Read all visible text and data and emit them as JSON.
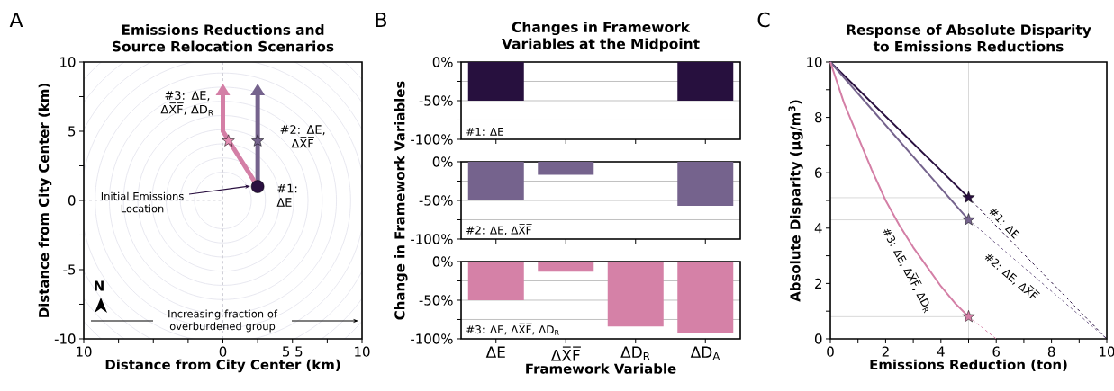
{
  "chart_data": [
    {
      "type": "scatter",
      "title": "Emissions Reductions and Source Relocation Scenarios",
      "xlabel": "Distance from City Center (km)",
      "ylabel": "Distance from City Center (km)",
      "xlim": [
        -10,
        10
      ],
      "ylim": [
        -10,
        10
      ],
      "xticks": [
        {
          "value": -10,
          "label": "10"
        },
        {
          "value": -7.5,
          "label": null
        },
        {
          "value": -5,
          "label": null
        },
        {
          "value": -2.5,
          "label": null
        },
        {
          "value": 0,
          "label": "0"
        },
        {
          "value": 2.5,
          "label": null
        },
        {
          "value": 5,
          "label": "5 5"
        },
        {
          "value": 7.5,
          "label": null
        },
        {
          "value": 10,
          "label": "10"
        }
      ],
      "yticks": [
        -10,
        {
          "value": -7.5,
          "label": null
        },
        -5,
        {
          "value": -2.5,
          "label": null
        },
        0,
        {
          "value": 2.5,
          "label": null
        },
        5,
        {
          "value": 7.5,
          "label": null
        },
        10
      ],
      "ref_lines": [
        {
          "axis": "x",
          "value": 0,
          "color": "#d0d0d8",
          "line_style": "dashed"
        },
        {
          "axis": "y",
          "value": 0,
          "color": "#d0d0d8",
          "line_style": "dashed"
        }
      ],
      "series": [
        {
          "type": "line",
          "color": "#75638d",
          "x": [
            2.5,
            2.5
          ],
          "values": [
            1.0,
            7.6
          ]
        },
        {
          "type": "line",
          "color": "#d47fa6",
          "x": [
            2.5,
            0,
            0
          ],
          "values": [
            1.0,
            5,
            7.6
          ]
        },
        {
          "type": "scatter",
          "marker": "star",
          "x": [
            0.4,
            2.5
          ],
          "values": [
            4.3,
            4.3
          ],
          "colors": [
            "#e58fb5",
            "#75638d"
          ]
        },
        {
          "type": "scatter",
          "marker": "circle",
          "x": [
            2.5
          ],
          "values": [
            1.0
          ],
          "color": "#2a1040"
        }
      ],
      "annotations": [
        {
          "text": "#1: ΔE",
          "x": 2.5,
          "y": 1.0
        },
        {
          "text": "#2: ΔE, ΔX̅F̅",
          "x": 2.5,
          "y": 4.3
        },
        "#3: ΔE, ΔX̅F̅, ΔD$_{R}$",
        "Initial Emissions Location",
        "Increasing fraction of overburdened group",
        "N",
        "A"
      ]
    },
    {
      "type": "bar",
      "title": "Changes in Framework Variables at the Midpoint",
      "categories": [
        null,
        null,
        null,
        null
      ],
      "values": [
        -50,
        0,
        0,
        -50
      ],
      "color": "#27103e",
      "ylim": [
        -100,
        0
      ],
      "yticks": [
        {
          "value": -100,
          "label": "-100%"
        },
        {
          "value": -75,
          "label": null
        },
        {
          "value": -50,
          "label": "-50%"
        },
        {
          "value": -25,
          "label": null
        },
        {
          "value": 0,
          "label": "0%"
        }
      ],
      "grid": "y",
      "tick_labels": "y",
      "annotations": [
        "#1: ΔE",
        "B"
      ]
    },
    {
      "type": "bar",
      "ylabel": "Change in Framework Variables",
      "categories": [
        null,
        null,
        null,
        null
      ],
      "values": [
        -50,
        -17,
        0,
        -57
      ],
      "color": "#75638d",
      "ylim": [
        -100,
        0
      ],
      "yticks": [
        {
          "value": -100,
          "label": "-100%"
        },
        {
          "value": -75,
          "label": null
        },
        {
          "value": -50,
          "label": "-50%"
        },
        {
          "value": -25,
          "label": null
        },
        {
          "value": 0,
          "label": "0%"
        }
      ],
      "grid": "y",
      "tick_labels": "y",
      "annotations": [
        "#2: ΔE, ΔX̅F̅"
      ]
    },
    {
      "type": "bar",
      "xlabel": "Framework Variable",
      "categories": [
        "ΔE",
        "ΔX̅F̅",
        "ΔD$_{R}$",
        "ΔD$_{A}$"
      ],
      "values": [
        -50,
        -13,
        -84,
        -93
      ],
      "color": "#d581a7",
      "ylim": [
        -100,
        0
      ],
      "yticks": [
        {
          "value": -100,
          "label": "-100%"
        },
        {
          "value": -75,
          "label": null
        },
        {
          "value": -50,
          "label": "-50%"
        },
        {
          "value": -25,
          "label": null
        },
        {
          "value": 0,
          "label": "0%"
        }
      ],
      "grid": "y",
      "annotations": [
        "#3: ΔE, ΔX̅F̅, ΔD$_{R}$"
      ]
    },
    {
      "type": "line",
      "title": "Response of Absolute Disparity to Emissions Reductions",
      "xlabel": "Emissions Reduction (ton)",
      "ylabel": "Absolute Disparity (μg/m$^{3}$)",
      "xlim": [
        0,
        10
      ],
      "ylim": [
        0,
        10
      ],
      "xticks": [
        0,
        {
          "value": 1,
          "label": null
        },
        2,
        {
          "value": 3,
          "label": null
        },
        4,
        {
          "value": 5,
          "label": null
        },
        6,
        {
          "value": 7,
          "label": null
        },
        8,
        {
          "value": 9,
          "label": null
        },
        10
      ],
      "yticks": [
        0,
        {
          "value": 1,
          "label": null
        },
        2,
        {
          "value": 3,
          "label": null
        },
        4,
        {
          "value": 5,
          "label": null
        },
        6,
        {
          "value": 7,
          "label": null
        },
        8,
        {
          "value": 9,
          "label": null
        },
        10
      ],
      "ref_lines": [
        {
          "axis": "x",
          "value": 5,
          "color": "#d9d9d9"
        },
        {
          "axis": "y",
          "value": 5.1,
          "color": "#d9d9d9"
        },
        {
          "axis": "y",
          "value": 4.3,
          "color": "#d9d9d9"
        },
        {
          "axis": "y",
          "value": 0.8,
          "color": "#d9d9d9"
        }
      ],
      "series": [
        {
          "color": "#2a1040",
          "x": [
            0,
            5
          ],
          "values": [
            10,
            5.1
          ]
        },
        {
          "color": "#2a1040",
          "x": [
            5,
            10
          ],
          "values": [
            5.1,
            0
          ],
          "line_style": "dashed"
        },
        {
          "color": "#75638d",
          "x": [
            0,
            5
          ],
          "values": [
            10,
            4.3
          ]
        },
        {
          "color": "#75638d",
          "x": [
            5,
            10
          ],
          "values": [
            4.3,
            0
          ],
          "line_style": "dashed"
        },
        {
          "color": "#d47fa6",
          "x": [
            0,
            0.5,
            1,
            1.5,
            2,
            2.5,
            3,
            3.5,
            4,
            4.5,
            5
          ],
          "values": [
            10,
            8.5,
            7.3,
            6.1,
            5.0,
            4.1,
            3.3,
            2.6,
            1.9,
            1.3,
            0.8
          ]
        },
        {
          "color": "#d47fa6",
          "x": [
            5,
            5.5,
            6
          ],
          "values": [
            0.8,
            0.4,
            0
          ],
          "line_style": "dashed"
        },
        {
          "type": "scatter",
          "marker": "star",
          "x": [
            5,
            5,
            5
          ],
          "values": [
            5.1,
            4.3,
            0.8
          ],
          "colors": [
            "#2a1040",
            "#75638d",
            "#d47fa6"
          ]
        }
      ],
      "annotations": [
        "#1: ΔE",
        "#2: ΔE, ΔX̅F̅",
        "#3: ΔE, ΔX̅F̅, ΔD$_{R}$",
        "C"
      ]
    }
  ]
}
